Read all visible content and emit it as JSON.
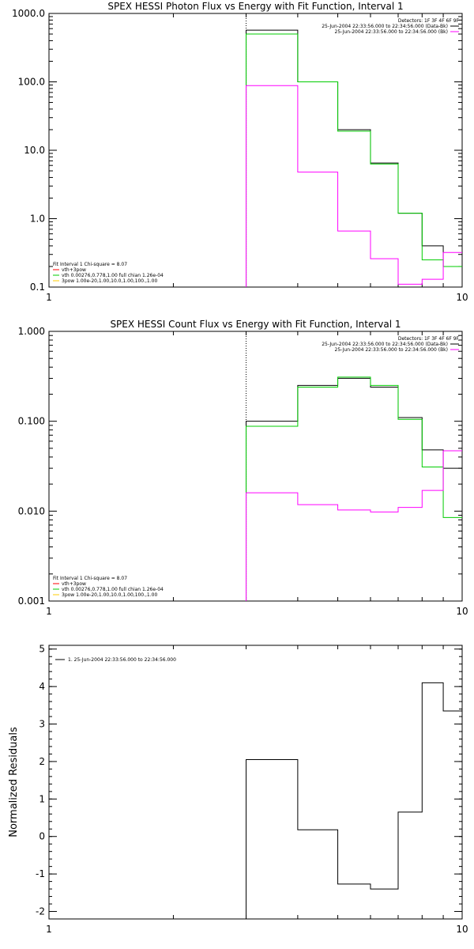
{
  "chart_data": [
    {
      "type": "line",
      "title": "SPEX HESSI Photon Flux vs Energy with Fit Function, Interval 1",
      "xscale": "log",
      "yscale": "log",
      "xlim": [
        1,
        10
      ],
      "ylim": [
        0.1,
        1000
      ],
      "x_ticks": [
        "1",
        "10"
      ],
      "y_ticks": [
        "0.1",
        "1.0",
        "10.0",
        "100.0",
        "1000.0"
      ],
      "marker_x": 3,
      "top_right_legend": [
        {
          "text": "Detectors: 1F 3F 4F 6F 9F",
          "color": ""
        },
        {
          "text": "25-Jun-2004 22:33:56.000 to 22:34:56.000 (Data-Bk)",
          "color": "#000000"
        },
        {
          "text": "25-Jun-2004 22:33:56.000 to 22:34:56.000 (Bk)",
          "color": "#ff00ff"
        }
      ],
      "bottom_left_legend": [
        {
          "text": "Fit Interval 1    Chi-square = 8.07",
          "color": ""
        },
        {
          "text": "vth+3pow",
          "color": "#ff0000"
        },
        {
          "text": "vth 0.00276,0.778,1.00   full chian 1.26e-04",
          "color": "#00cc00"
        },
        {
          "text": "3pow 1.00e-20,1.00,10.0,1.00,100.,1.00",
          "color": "#ffcc00"
        }
      ],
      "series": [
        {
          "color": "#000000",
          "edges": [
            3,
            4,
            5,
            6,
            7,
            8,
            9,
            10
          ],
          "values": [
            570,
            100,
            20,
            6.5,
            1.2,
            0.4,
            0.2
          ]
        },
        {
          "color": "#00cc00",
          "edges": [
            3,
            4,
            5,
            6,
            7,
            8,
            9,
            10
          ],
          "values": [
            500,
            100,
            19,
            6.3,
            1.2,
            0.25,
            0.2
          ]
        },
        {
          "color": "#ff00ff",
          "edges": [
            3,
            4,
            5,
            6,
            7,
            8,
            9,
            10
          ],
          "values": [
            88,
            4.8,
            0.66,
            0.26,
            0.11,
            0.13,
            0.32
          ]
        }
      ]
    },
    {
      "type": "line",
      "title": "SPEX HESSI Count Flux vs Energy with Fit Function, Interval 1",
      "xscale": "log",
      "yscale": "log",
      "xlim": [
        1,
        10
      ],
      "ylim": [
        0.001,
        1
      ],
      "x_ticks": [
        "1",
        "10"
      ],
      "y_ticks": [
        "0.001",
        "0.010",
        "0.100",
        "1.000"
      ],
      "marker_x": 3,
      "top_right_legend": [
        {
          "text": "Detectors: 1F 3F 4F 6F 9F",
          "color": ""
        },
        {
          "text": "25-Jun-2004 22:33:56.000 to 22:34:56.000 (Data-Bk)",
          "color": "#000000"
        },
        {
          "text": "25-Jun-2004 22:33:56.000 to 22:34:56.000 (Bk)",
          "color": "#ff00ff"
        }
      ],
      "bottom_left_legend": [
        {
          "text": "Fit Interval 1    Chi-square = 8.07",
          "color": ""
        },
        {
          "text": "vth+3pow",
          "color": "#ff0000"
        },
        {
          "text": "vth 0.00276,0.778,1.00   full chian 1.26e-04",
          "color": "#00cc00"
        },
        {
          "text": "3pow 1.00e-20,1.00,10.0,1.00,100.,1.00",
          "color": "#ffcc00"
        }
      ],
      "series": [
        {
          "color": "#000000",
          "edges": [
            3,
            4,
            5,
            6,
            7,
            8,
            9,
            10
          ],
          "values": [
            0.1,
            0.25,
            0.3,
            0.24,
            0.11,
            0.048,
            0.03
          ]
        },
        {
          "color": "#00cc00",
          "edges": [
            3,
            4,
            5,
            6,
            7,
            8,
            9,
            10
          ],
          "values": [
            0.088,
            0.24,
            0.31,
            0.25,
            0.105,
            0.031,
            0.0085
          ]
        },
        {
          "color": "#ff00ff",
          "edges": [
            3,
            4,
            5,
            6,
            7,
            8,
            9,
            10
          ],
          "values": [
            0.016,
            0.0118,
            0.0103,
            0.0098,
            0.011,
            0.017,
            0.047
          ]
        }
      ]
    },
    {
      "type": "line",
      "title": "",
      "xscale": "log",
      "yscale": "linear",
      "xlim": [
        1,
        10
      ],
      "ylim": [
        -2.2,
        5.1
      ],
      "x_ticks": [
        "1",
        "10"
      ],
      "y_ticks": [
        "-2",
        "-1",
        "0",
        "1",
        "2",
        "3",
        "4",
        "5"
      ],
      "ylabel": "Normalized Residuals",
      "top_left_legend": [
        {
          "text": "1. 25-Jun-2004 22:33:56.000 to 22:34:56.000",
          "color": "#000000"
        }
      ],
      "series": [
        {
          "color": "#000000",
          "edges": [
            3,
            4,
            5,
            6,
            7,
            8,
            9,
            10
          ],
          "values": [
            2.05,
            0.18,
            -1.27,
            -1.4,
            0.65,
            4.1,
            3.35
          ]
        }
      ]
    }
  ]
}
